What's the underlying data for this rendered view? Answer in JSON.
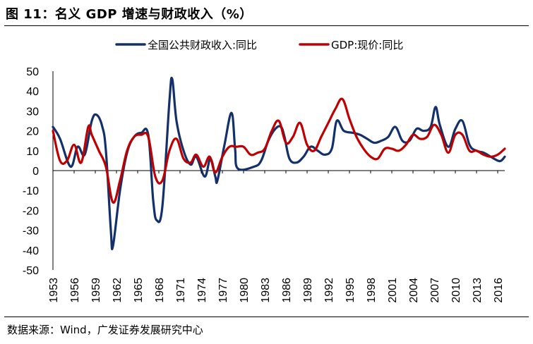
{
  "title": "图 11：名义 GDP 增速与财政收入（%）",
  "source": "数据来源：Wind，广发证券发展研究中心",
  "chart_data": {
    "type": "line",
    "ylim": [
      -50,
      50
    ],
    "yticks": [
      50,
      40,
      30,
      20,
      10,
      0,
      -10,
      -20,
      -30,
      -40,
      -50
    ],
    "x_start": 1953,
    "x_end": 2017,
    "xtick_labels": [
      "1953",
      "1956",
      "1959",
      "1962",
      "1965",
      "1968",
      "1971",
      "1974",
      "1977",
      "1980",
      "1983",
      "1986",
      "1989",
      "1992",
      "1995",
      "1998",
      "2001",
      "2004",
      "2007",
      "2010",
      "2013",
      "2016"
    ],
    "legend_position": "top",
    "series": [
      {
        "name": "全国公共财政收入:同比",
        "color": "#13306b",
        "points": [
          [
            1953.0,
            22
          ],
          [
            1954.0,
            16
          ],
          [
            1955.5,
            2
          ],
          [
            1956.5,
            12
          ],
          [
            1957.5,
            8
          ],
          [
            1958.5,
            25
          ],
          [
            1959.2,
            28
          ],
          [
            1960.0,
            22
          ],
          [
            1960.5,
            10
          ],
          [
            1961.2,
            -30
          ],
          [
            1961.5,
            -38
          ],
          [
            1962.5,
            -10
          ],
          [
            1963.5,
            9
          ],
          [
            1964.5,
            17
          ],
          [
            1965.5,
            19
          ],
          [
            1966.5,
            18
          ],
          [
            1967.2,
            -15
          ],
          [
            1967.7,
            -25
          ],
          [
            1968.5,
            -18
          ],
          [
            1969.5,
            35
          ],
          [
            1969.9,
            46
          ],
          [
            1970.5,
            25
          ],
          [
            1971.5,
            10
          ],
          [
            1972.5,
            3
          ],
          [
            1973.3,
            7
          ],
          [
            1974.5,
            -3
          ],
          [
            1975.3,
            6
          ],
          [
            1976.0,
            -3
          ],
          [
            1976.3,
            -5
          ],
          [
            1977.3,
            13
          ],
          [
            1978.3,
            29
          ],
          [
            1978.8,
            11
          ],
          [
            1979.2,
            1
          ],
          [
            1981.5,
            2
          ],
          [
            1982.5,
            5
          ],
          [
            1983.5,
            15
          ],
          [
            1984.5,
            21
          ],
          [
            1985.3,
            22
          ],
          [
            1985.8,
            17
          ],
          [
            1986.5,
            6
          ],
          [
            1987.5,
            4
          ],
          [
            1988.5,
            7
          ],
          [
            1989.5,
            12
          ],
          [
            1990.5,
            10
          ],
          [
            1991.5,
            8
          ],
          [
            1992.5,
            11
          ],
          [
            1993.2,
            25
          ],
          [
            1994.2,
            20
          ],
          [
            1995.5,
            19
          ],
          [
            1996.5,
            18
          ],
          [
            1997.5,
            16
          ],
          [
            1998.5,
            14
          ],
          [
            1999.5,
            15
          ],
          [
            2000.5,
            17
          ],
          [
            2001.5,
            22
          ],
          [
            2002.5,
            15
          ],
          [
            2003.5,
            15
          ],
          [
            2004.5,
            21
          ],
          [
            2005.5,
            20
          ],
          [
            2006.5,
            22
          ],
          [
            2007.2,
            32
          ],
          [
            2007.8,
            23
          ],
          [
            2009.0,
            12
          ],
          [
            2010.0,
            21
          ],
          [
            2011.0,
            25
          ],
          [
            2012.0,
            13
          ],
          [
            2013.0,
            10
          ],
          [
            2014.0,
            9
          ],
          [
            2015.0,
            7
          ],
          [
            2016.0,
            5
          ],
          [
            2016.5,
            5
          ],
          [
            2017.0,
            7
          ]
        ]
      },
      {
        "name": "GDP:现价:同比",
        "color": "#c00000",
        "points": [
          [
            1953.0,
            20
          ],
          [
            1954.0,
            5
          ],
          [
            1955.0,
            5
          ],
          [
            1956.0,
            13
          ],
          [
            1957.0,
            4
          ],
          [
            1958.0,
            22
          ],
          [
            1958.5,
            18
          ],
          [
            1959.5,
            10
          ],
          [
            1960.5,
            2
          ],
          [
            1961.5,
            -16
          ],
          [
            1962.5,
            -5
          ],
          [
            1963.5,
            10
          ],
          [
            1964.5,
            17
          ],
          [
            1965.5,
            18
          ],
          [
            1966.5,
            17
          ],
          [
            1967.5,
            -3
          ],
          [
            1968.5,
            -5
          ],
          [
            1969.5,
            10
          ],
          [
            1970.5,
            16
          ],
          [
            1971.5,
            6
          ],
          [
            1972.5,
            4
          ],
          [
            1973.3,
            8
          ],
          [
            1974.3,
            2
          ],
          [
            1975.2,
            7
          ],
          [
            1976.0,
            -1
          ],
          [
            1977.0,
            7
          ],
          [
            1978.0,
            12
          ],
          [
            1979.0,
            12
          ],
          [
            1980.0,
            12
          ],
          [
            1981.0,
            8
          ],
          [
            1982.0,
            9
          ],
          [
            1983.0,
            11
          ],
          [
            1984.0,
            20
          ],
          [
            1985.0,
            25
          ],
          [
            1986.0,
            14
          ],
          [
            1987.0,
            17
          ],
          [
            1988.0,
            24
          ],
          [
            1989.0,
            13
          ],
          [
            1990.0,
            10
          ],
          [
            1991.0,
            17
          ],
          [
            1992.0,
            24
          ],
          [
            1993.0,
            31
          ],
          [
            1994.0,
            36
          ],
          [
            1995.0,
            26
          ],
          [
            1996.0,
            17
          ],
          [
            1997.0,
            11
          ],
          [
            1998.0,
            7
          ],
          [
            1999.0,
            6
          ],
          [
            2000.0,
            11
          ],
          [
            2001.0,
            11
          ],
          [
            2002.0,
            10
          ],
          [
            2003.0,
            13
          ],
          [
            2004.0,
            18
          ],
          [
            2005.0,
            16
          ],
          [
            2006.0,
            17
          ],
          [
            2007.0,
            23
          ],
          [
            2008.0,
            18
          ],
          [
            2009.0,
            9
          ],
          [
            2010.0,
            18
          ],
          [
            2011.0,
            18
          ],
          [
            2012.0,
            10
          ],
          [
            2013.0,
            10
          ],
          [
            2014.0,
            8
          ],
          [
            2015.0,
            7
          ],
          [
            2016.0,
            8
          ],
          [
            2017.0,
            11
          ]
        ]
      }
    ]
  }
}
